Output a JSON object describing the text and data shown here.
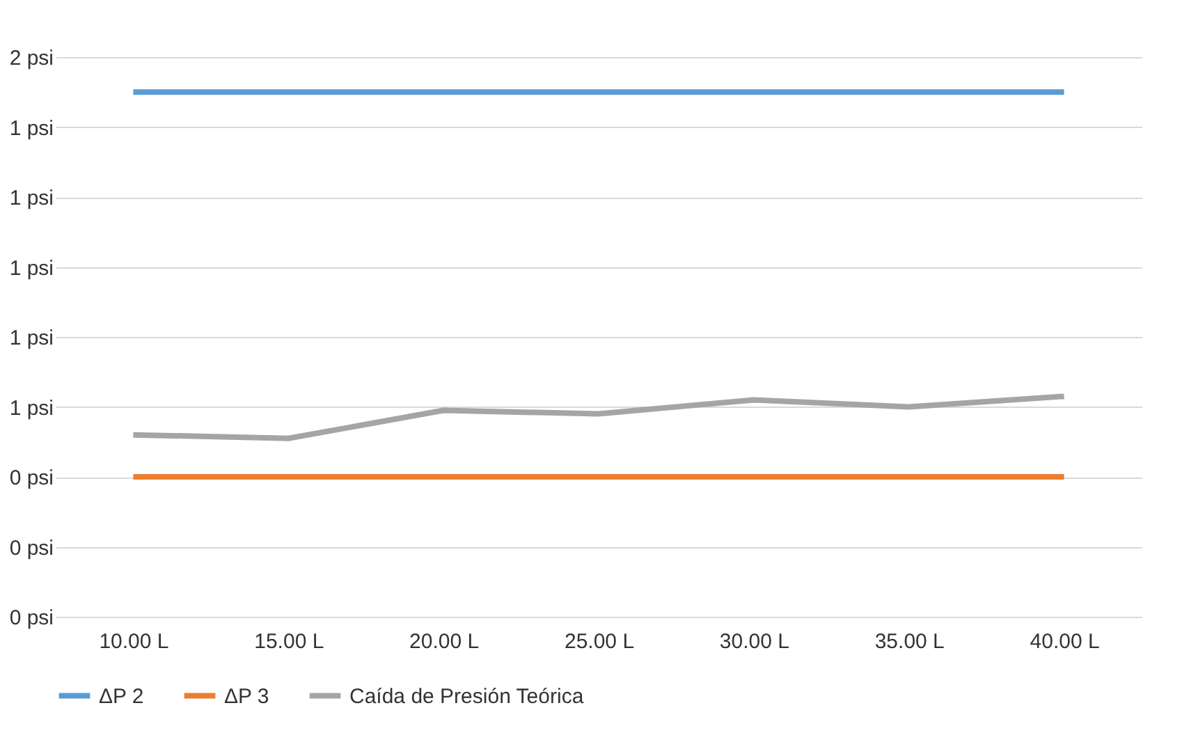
{
  "chart_data": {
    "type": "line",
    "categories": [
      "10.00 L",
      "15.00 L",
      "20.00 L",
      "25.00 L",
      "30.00 L",
      "35.00 L",
      "40.00 L"
    ],
    "series": [
      {
        "name": "ΔP 2",
        "color": "#5b9bd5",
        "values": [
          1.5,
          1.5,
          1.5,
          1.5,
          1.5,
          1.5,
          1.5
        ]
      },
      {
        "name": "ΔP 3",
        "color": "#ed7d31",
        "values": [
          0.4,
          0.4,
          0.4,
          0.4,
          0.4,
          0.4,
          0.4
        ]
      },
      {
        "name": "Caída de Presión Teórica",
        "color": "#a5a5a5",
        "values": [
          0.52,
          0.51,
          0.59,
          0.58,
          0.62,
          0.6,
          0.63
        ]
      }
    ],
    "ylim": [
      0,
      1.6
    ],
    "yticks": [
      {
        "value": 0,
        "label": "0 psi"
      },
      {
        "value": 0.2,
        "label": "0 psi"
      },
      {
        "value": 0.4,
        "label": "0 psi"
      },
      {
        "value": 0.6,
        "label": "1 psi"
      },
      {
        "value": 0.8,
        "label": "1 psi"
      },
      {
        "value": 1.0,
        "label": "1 psi"
      },
      {
        "value": 1.2,
        "label": "1 psi"
      },
      {
        "value": 1.4,
        "label": "1 psi"
      },
      {
        "value": 1.6,
        "label": "2 psi"
      }
    ],
    "grid": "y",
    "legend": "bottom",
    "marker": "none",
    "line_style": "solid"
  }
}
